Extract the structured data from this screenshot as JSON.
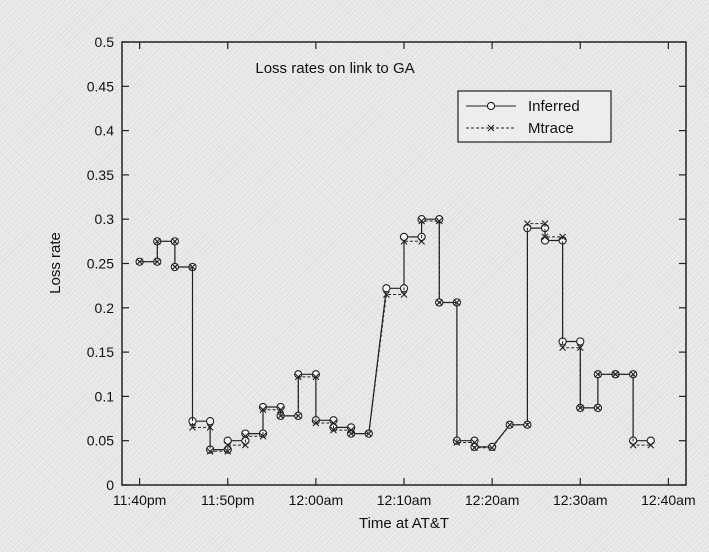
{
  "chart_data": {
    "type": "line",
    "title": "Loss rates on link to GA",
    "xlabel": "Time at AT&T",
    "ylabel": "Loss rate",
    "ylim": [
      0,
      0.5
    ],
    "yticks": [
      0,
      0.05,
      0.1,
      0.15,
      0.2,
      0.25,
      0.3,
      0.35,
      0.4,
      0.45,
      0.5
    ],
    "ytick_labels": [
      "0",
      "0.05",
      "0.1",
      "0.15",
      "0.2",
      "0.25",
      "0.3",
      "0.35",
      "0.4",
      "0.45",
      "0.5"
    ],
    "xlim": [
      -2,
      62
    ],
    "xtick_values": [
      0,
      10,
      20,
      30,
      40,
      50,
      60
    ],
    "xtick_labels": [
      "11:40pm",
      "11:50pm",
      "12:00am",
      "12:10am",
      "12:20am",
      "12:30am",
      "12:40am"
    ],
    "legend_position": "top-right",
    "grid": false,
    "series": [
      {
        "name": "Inferred",
        "marker": "circle",
        "line_style": "solid",
        "points": [
          [
            0,
            0.252
          ],
          [
            2,
            0.252
          ],
          [
            2,
            0.275
          ],
          [
            4,
            0.275
          ],
          [
            4,
            0.246
          ],
          [
            6,
            0.246
          ],
          [
            6,
            0.072
          ],
          [
            8,
            0.072
          ],
          [
            8,
            0.04
          ],
          [
            10,
            0.04
          ],
          [
            10,
            0.05
          ],
          [
            12,
            0.05
          ],
          [
            12,
            0.058
          ],
          [
            14,
            0.058
          ],
          [
            14,
            0.088
          ],
          [
            16,
            0.088
          ],
          [
            16,
            0.078
          ],
          [
            18,
            0.078
          ],
          [
            18,
            0.125
          ],
          [
            20,
            0.125
          ],
          [
            20,
            0.073
          ],
          [
            22,
            0.073
          ],
          [
            22,
            0.065
          ],
          [
            24,
            0.065
          ],
          [
            24,
            0.058
          ],
          [
            26,
            0.058
          ],
          [
            28,
            0.222
          ],
          [
            30,
            0.222
          ],
          [
            30,
            0.28
          ],
          [
            32,
            0.28
          ],
          [
            32,
            0.3
          ],
          [
            34,
            0.3
          ],
          [
            34,
            0.206
          ],
          [
            36,
            0.206
          ],
          [
            36,
            0.05
          ],
          [
            38,
            0.05
          ],
          [
            38,
            0.043
          ],
          [
            40,
            0.043
          ],
          [
            42,
            0.068
          ],
          [
            44,
            0.068
          ],
          [
            44,
            0.29
          ],
          [
            46,
            0.29
          ],
          [
            46,
            0.276
          ],
          [
            48,
            0.276
          ],
          [
            48,
            0.162
          ],
          [
            50,
            0.162
          ],
          [
            50,
            0.087
          ],
          [
            52,
            0.087
          ],
          [
            52,
            0.125
          ],
          [
            54,
            0.125
          ],
          [
            54,
            0.125
          ],
          [
            56,
            0.125
          ],
          [
            56,
            0.05
          ],
          [
            58,
            0.05
          ]
        ]
      },
      {
        "name": "Mtrace",
        "marker": "x",
        "line_style": "dashed",
        "points": [
          [
            0,
            0.252
          ],
          [
            2,
            0.252
          ],
          [
            2,
            0.275
          ],
          [
            4,
            0.275
          ],
          [
            4,
            0.246
          ],
          [
            6,
            0.246
          ],
          [
            6,
            0.065
          ],
          [
            8,
            0.065
          ],
          [
            8,
            0.038
          ],
          [
            10,
            0.038
          ],
          [
            10,
            0.045
          ],
          [
            12,
            0.045
          ],
          [
            12,
            0.055
          ],
          [
            14,
            0.055
          ],
          [
            14,
            0.085
          ],
          [
            16,
            0.085
          ],
          [
            16,
            0.078
          ],
          [
            18,
            0.078
          ],
          [
            18,
            0.122
          ],
          [
            20,
            0.122
          ],
          [
            20,
            0.07
          ],
          [
            22,
            0.07
          ],
          [
            22,
            0.062
          ],
          [
            24,
            0.062
          ],
          [
            24,
            0.058
          ],
          [
            26,
            0.058
          ],
          [
            28,
            0.215
          ],
          [
            30,
            0.215
          ],
          [
            30,
            0.275
          ],
          [
            32,
            0.275
          ],
          [
            32,
            0.298
          ],
          [
            34,
            0.298
          ],
          [
            34,
            0.206
          ],
          [
            36,
            0.206
          ],
          [
            36,
            0.048
          ],
          [
            38,
            0.048
          ],
          [
            38,
            0.042
          ],
          [
            40,
            0.042
          ],
          [
            42,
            0.068
          ],
          [
            44,
            0.068
          ],
          [
            44,
            0.295
          ],
          [
            46,
            0.295
          ],
          [
            46,
            0.28
          ],
          [
            48,
            0.28
          ],
          [
            48,
            0.155
          ],
          [
            50,
            0.155
          ],
          [
            50,
            0.087
          ],
          [
            52,
            0.087
          ],
          [
            52,
            0.125
          ],
          [
            54,
            0.125
          ],
          [
            54,
            0.125
          ],
          [
            56,
            0.125
          ],
          [
            56,
            0.045
          ],
          [
            58,
            0.045
          ]
        ]
      }
    ]
  }
}
